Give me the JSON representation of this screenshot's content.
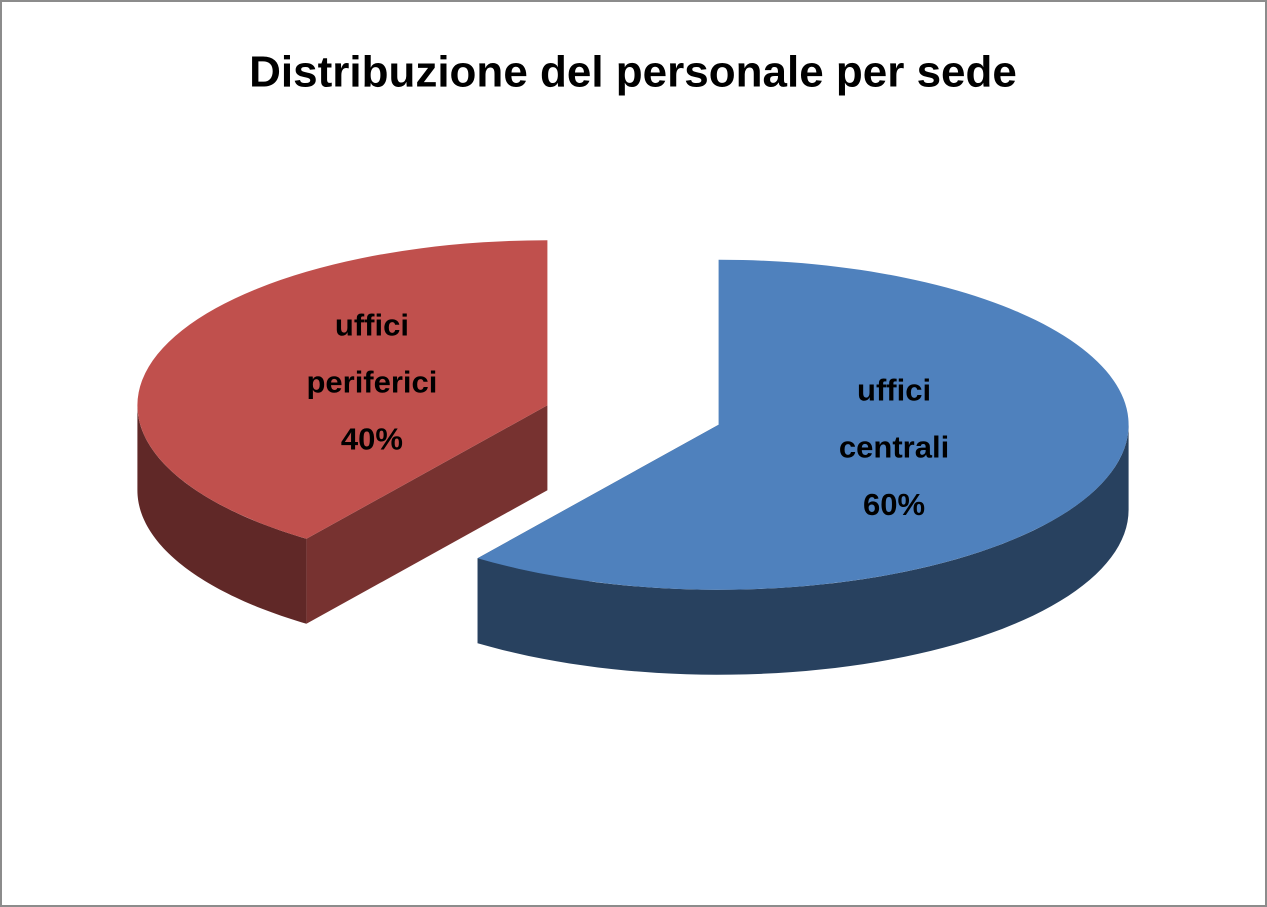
{
  "chart_data": {
    "type": "pie",
    "title": "Distribuzione del personale per sede",
    "categories": [
      "uffici centrali",
      "uffici periferici"
    ],
    "values": [
      60,
      40
    ],
    "value_labels": [
      "60%",
      "40%"
    ],
    "colors": [
      "#4f81bd",
      "#c0504d"
    ],
    "three_d": true,
    "exploded": true
  }
}
